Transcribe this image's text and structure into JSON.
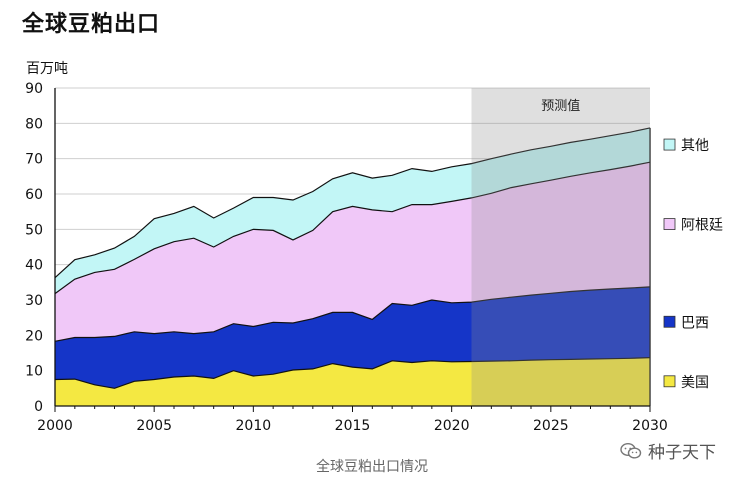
{
  "title": "全球豆粕出口",
  "caption": "全球豆粕出口情况",
  "watermark": "种子天下",
  "chart_data": {
    "type": "area",
    "stacked": true,
    "ylabel": "百万吨",
    "ylim": [
      0,
      90
    ],
    "yticks": [
      0,
      10,
      20,
      30,
      40,
      50,
      60,
      70,
      80,
      90
    ],
    "xlim": [
      2000,
      2030
    ],
    "xticks": [
      2000,
      2005,
      2010,
      2015,
      2020,
      2025,
      2030
    ],
    "grid": true,
    "legend_position": "right",
    "projection": {
      "label": "预测值",
      "from": 2021,
      "to": 2030
    },
    "x": [
      2000,
      2001,
      2002,
      2003,
      2004,
      2005,
      2006,
      2007,
      2008,
      2009,
      2010,
      2011,
      2012,
      2013,
      2014,
      2015,
      2016,
      2017,
      2018,
      2019,
      2020,
      2021,
      2022,
      2023,
      2024,
      2025,
      2026,
      2027,
      2028,
      2029,
      2030
    ],
    "series": [
      {
        "name": "美国",
        "color": "#f4e842",
        "values": [
          7.5,
          7.6,
          6,
          5,
          7,
          7.5,
          8.2,
          8.5,
          7.8,
          10,
          8.5,
          9,
          10.2,
          10.5,
          12,
          11,
          10.5,
          12.8,
          12.3,
          12.8,
          12.5,
          12.6,
          12.7,
          12.8,
          13,
          13.1,
          13.2,
          13.3,
          13.4,
          13.5,
          13.7
        ]
      },
      {
        "name": "巴西",
        "color": "#1535c8",
        "values": [
          10.8,
          11.8,
          13.4,
          14.7,
          14,
          13,
          12.8,
          12,
          13.2,
          13.3,
          14,
          14.7,
          13.3,
          14.2,
          14.5,
          15.5,
          14,
          16.2,
          16.2,
          17.2,
          16.7,
          16.8,
          17.5,
          18,
          18.4,
          18.8,
          19.2,
          19.5,
          19.7,
          19.9,
          20
        ]
      },
      {
        "name": "阿根廷",
        "color": "#f0c8f8",
        "values": [
          13.5,
          16.5,
          18.4,
          19,
          20.5,
          24,
          25.5,
          27,
          24,
          24.7,
          27.5,
          26,
          23.5,
          25,
          28.5,
          30,
          31,
          26,
          28.5,
          27,
          28.7,
          29.5,
          30,
          31,
          31.5,
          32,
          32.6,
          33.2,
          33.8,
          34.5,
          35.3
        ]
      },
      {
        "name": "其他",
        "color": "#c2f6f6",
        "values": [
          4.5,
          5.5,
          5,
          6,
          6.5,
          8.5,
          8,
          9,
          8.2,
          8,
          9,
          9.3,
          11.3,
          11,
          9.3,
          9.5,
          9,
          10.3,
          10.2,
          9.4,
          9.8,
          9.7,
          9.8,
          9.5,
          9.6,
          9.6,
          9.6,
          9.5,
          9.6,
          9.6,
          9.7
        ]
      }
    ]
  }
}
